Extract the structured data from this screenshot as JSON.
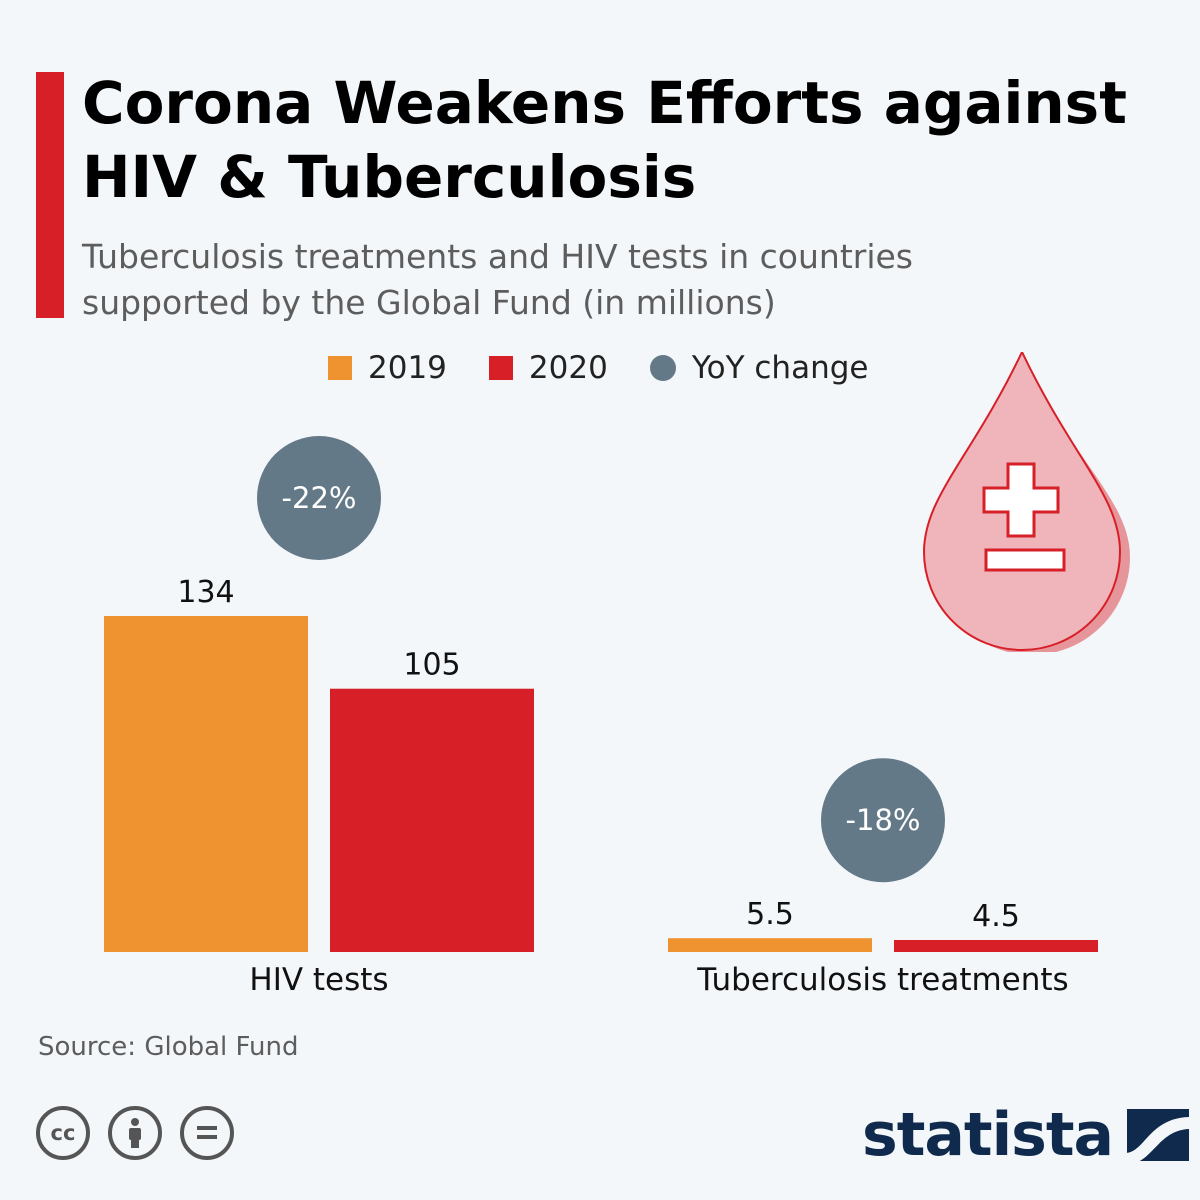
{
  "header": {
    "title": "Corona Weakens Efforts against HIV & Tuberculosis",
    "subtitle": "Tuberculosis treatments and HIV tests in countries supported by the Global Fund (in millions)"
  },
  "legend": {
    "items": [
      {
        "label": "2019",
        "color": "#ef9230",
        "shape": "square"
      },
      {
        "label": "2020",
        "color": "#d71f28",
        "shape": "square"
      },
      {
        "label": "YoY change",
        "color": "#647988",
        "shape": "circle"
      }
    ]
  },
  "chart_data": {
    "type": "bar",
    "title": "Corona Weakens Efforts against HIV & Tuberculosis",
    "ylabel": "in millions",
    "categories": [
      "HIV tests",
      "Tuberculosis treatments"
    ],
    "series": [
      {
        "name": "2019",
        "color": "#ef9230",
        "values": [
          134,
          5.5
        ]
      },
      {
        "name": "2020",
        "color": "#d71f28",
        "values": [
          105,
          4.5
        ]
      }
    ],
    "data_labels": [
      [
        "134",
        "5.5"
      ],
      [
        "105",
        "4.5"
      ]
    ],
    "annotations": [
      {
        "category": "HIV tests",
        "label": "-22%",
        "color": "#647988"
      },
      {
        "category": "Tuberculosis treatments",
        "label": "-18%",
        "color": "#647988"
      }
    ],
    "ylim": [
      0,
      134
    ],
    "grid": false
  },
  "footer": {
    "source": "Source: Global Fund",
    "brand": "statista",
    "license_icons": [
      "cc-icon",
      "attribution-icon",
      "no-derivatives-icon"
    ]
  },
  "decor": {
    "icon": "blood-drop-plus-minus-icon",
    "drop_color": "#d71f28"
  }
}
